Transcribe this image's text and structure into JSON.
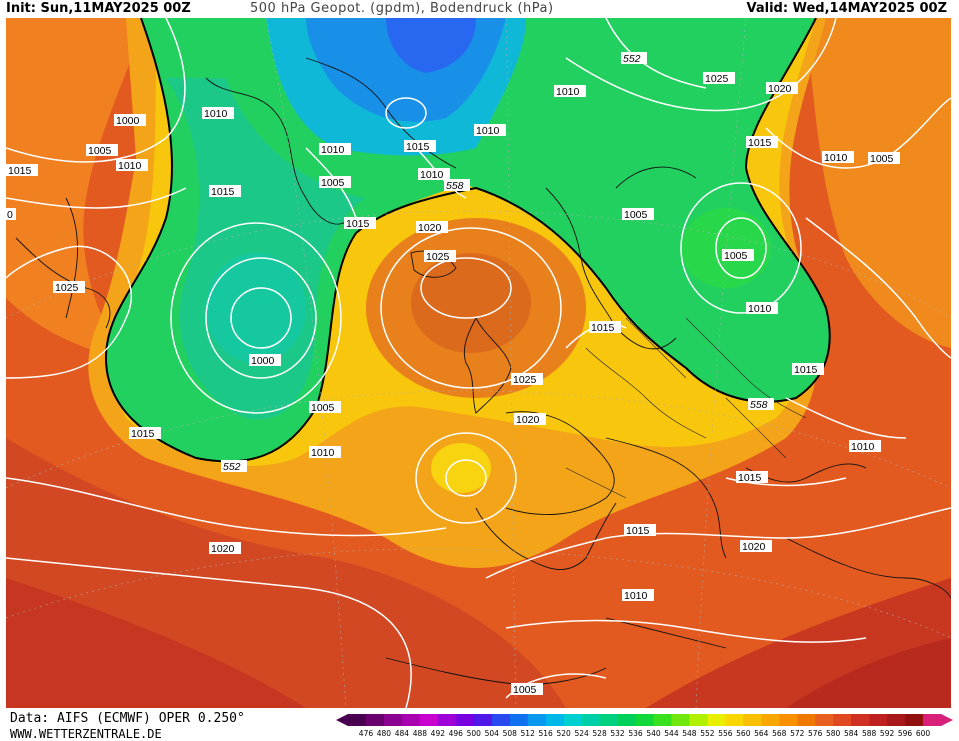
{
  "header": {
    "init": "Init: Sun,11MAY2025 00Z",
    "title": "500 hPa Geopot. (gpdm), Bodendruck (hPa)",
    "valid": "Valid: Wed,14MAY2025 00Z"
  },
  "footer": {
    "data_source": "Data: AIFS (ECMWF) OPER 0.250°",
    "website": "WWW.WETTERZENTRALE.DE"
  },
  "colorbar": {
    "ticks": [
      "476",
      "480",
      "484",
      "488",
      "492",
      "496",
      "500",
      "504",
      "508",
      "512",
      "516",
      "520",
      "524",
      "528",
      "532",
      "536",
      "540",
      "544",
      "548",
      "552",
      "556",
      "560",
      "564",
      "568",
      "572",
      "576",
      "580",
      "584",
      "588",
      "592",
      "596",
      "600"
    ],
    "colors": [
      "#4a0050",
      "#6a006e",
      "#8a0090",
      "#a800b0",
      "#c800d0",
      "#a000d8",
      "#7800e0",
      "#5018e8",
      "#2848f0",
      "#1070f0",
      "#0898f0",
      "#00b8e8",
      "#00d0d0",
      "#00d0a8",
      "#00d080",
      "#00d058",
      "#10d838",
      "#38e020",
      "#70e810",
      "#b0f000",
      "#e8f000",
      "#f8d800",
      "#f8c000",
      "#f8a800",
      "#f89000",
      "#f07800",
      "#e86020",
      "#e04820",
      "#d03020",
      "#c02020",
      "#a81818",
      "#901010",
      "#d8207a"
    ]
  },
  "map": {
    "pressure_labels": [
      {
        "text": "1000"
      },
      {
        "text": "1005"
      },
      {
        "text": "1010"
      },
      {
        "text": "1015"
      },
      {
        "text": "0"
      },
      {
        "text": "1010"
      },
      {
        "text": "1015"
      },
      {
        "text": "1025"
      },
      {
        "text": "1010"
      },
      {
        "text": "1005"
      },
      {
        "text": "1015"
      },
      {
        "text": "1015"
      },
      {
        "text": "1010"
      },
      {
        "text": "1020"
      },
      {
        "text": "1025"
      },
      {
        "text": "1000"
      },
      {
        "text": "1005"
      },
      {
        "text": "1015"
      },
      {
        "text": "1010"
      },
      {
        "text": "1020"
      },
      {
        "text": "1025"
      },
      {
        "text": "1015"
      },
      {
        "text": "1020"
      },
      {
        "text": "1010"
      },
      {
        "text": "1010"
      },
      {
        "text": "1025"
      },
      {
        "text": "1020"
      },
      {
        "text": "1015"
      },
      {
        "text": "1010"
      },
      {
        "text": "1005"
      },
      {
        "text": "1005"
      },
      {
        "text": "1010"
      },
      {
        "text": "1005"
      },
      {
        "text": "1015"
      },
      {
        "text": "1010"
      },
      {
        "text": "1015"
      },
      {
        "text": "1015"
      },
      {
        "text": "1020"
      },
      {
        "text": "1010"
      },
      {
        "text": "1005"
      }
    ],
    "geopotential_labels": [
      {
        "text": "552"
      },
      {
        "text": "558"
      },
      {
        "text": "552"
      },
      {
        "text": "558"
      }
    ]
  }
}
